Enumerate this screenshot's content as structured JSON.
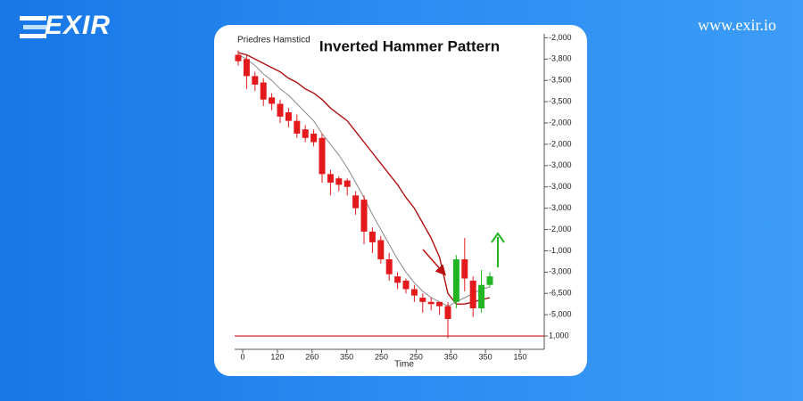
{
  "header": {
    "logo": "EXIR",
    "url": "www.exir.io"
  },
  "chart_data": {
    "type": "candlestick",
    "title": "Inverted Hammer Pattern",
    "subtitle": "Priedres Hamsticd",
    "x_label": "Time",
    "x_tick_labels": [
      "0",
      "120",
      "260",
      "350",
      "250",
      "250",
      "350",
      "350",
      "150"
    ],
    "yticks": [
      {
        "value": 14,
        "label": "-2,000"
      },
      {
        "value": 13,
        "label": "-3,800"
      },
      {
        "value": 12,
        "label": "-3,500"
      },
      {
        "value": 11,
        "label": "-3,500"
      },
      {
        "value": 10,
        "label": "-2,000"
      },
      {
        "value": 9,
        "label": "-2,000"
      },
      {
        "value": 8,
        "label": "-3,000"
      },
      {
        "value": 7,
        "label": "-3,000"
      },
      {
        "value": 6,
        "label": "-3,000"
      },
      {
        "value": 5,
        "label": "-2,000"
      },
      {
        "value": 4,
        "label": "-1,000"
      },
      {
        "value": 3,
        "label": "-3,000"
      },
      {
        "value": 2,
        "label": "-6,500"
      },
      {
        "value": 1,
        "label": "-5,000"
      },
      {
        "value": 0,
        "label": "1,000"
      }
    ],
    "ylim": [
      -0.75,
      14.1
    ],
    "up_color": "#22b422",
    "down_color": "#e3191c",
    "open": [
      13.2,
      13.0,
      12.2,
      11.9,
      11.2,
      10.9,
      10.5,
      10.1,
      9.7,
      9.5,
      9.3,
      7.6,
      7.4,
      7.3,
      6.6,
      6.4,
      4.9,
      4.5,
      3.6,
      2.8,
      2.6,
      2.2,
      1.8,
      1.6,
      1.6,
      1.4,
      1.6,
      3.6,
      2.6,
      1.3,
      2.4
    ],
    "high": [
      13.4,
      13.2,
      12.4,
      12.1,
      11.4,
      11.1,
      10.7,
      10.4,
      9.9,
      9.7,
      9.5,
      7.8,
      7.5,
      7.4,
      6.8,
      6.6,
      5.1,
      4.7,
      3.9,
      3.0,
      2.7,
      2.4,
      2.0,
      1.8,
      1.6,
      1.6,
      3.8,
      4.6,
      2.8,
      3.1,
      3.0
    ],
    "low": [
      12.7,
      11.6,
      11.5,
      10.8,
      10.6,
      10.0,
      9.8,
      9.3,
      9.1,
      8.9,
      7.2,
      6.6,
      6.8,
      6.6,
      5.7,
      4.3,
      3.9,
      3.4,
      2.6,
      2.2,
      2.0,
      1.6,
      1.1,
      1.2,
      1.0,
      -0.1,
      1.3,
      2.1,
      0.9,
      1.1,
      2.3
    ],
    "close": [
      12.9,
      12.2,
      11.8,
      11.1,
      10.9,
      10.3,
      10.1,
      9.5,
      9.3,
      9.1,
      7.6,
      7.2,
      7.1,
      7.0,
      6.0,
      4.9,
      4.4,
      3.6,
      2.9,
      2.5,
      2.2,
      1.9,
      1.6,
      1.5,
      1.4,
      0.8,
      3.6,
      2.7,
      1.3,
      2.4,
      2.8
    ],
    "series": [
      {
        "color": "#b01010",
        "values": [
          13.3,
          13.2,
          13.0,
          12.8,
          12.6,
          12.4,
          12.1,
          11.9,
          11.6,
          11.4,
          11.1,
          10.7,
          10.4,
          10.1,
          9.6,
          9.1,
          8.6,
          8.1,
          7.6,
          7.1,
          6.5,
          6.0,
          5.3,
          4.6,
          3.7,
          2.0,
          1.5,
          1.5,
          1.6,
          1.7,
          1.8
        ]
      },
      {
        "color": "#888888",
        "values": [
          13.2,
          13.0,
          12.7,
          12.3,
          12.0,
          11.6,
          11.3,
          10.9,
          10.5,
          10.1,
          9.5,
          9.0,
          8.5,
          7.9,
          7.2,
          6.5,
          5.7,
          5.0,
          4.3,
          3.6,
          3.0,
          2.5,
          2.1,
          1.8,
          1.6,
          1.4,
          1.6,
          1.8,
          2.0,
          2.2,
          2.3
        ]
      }
    ]
  }
}
